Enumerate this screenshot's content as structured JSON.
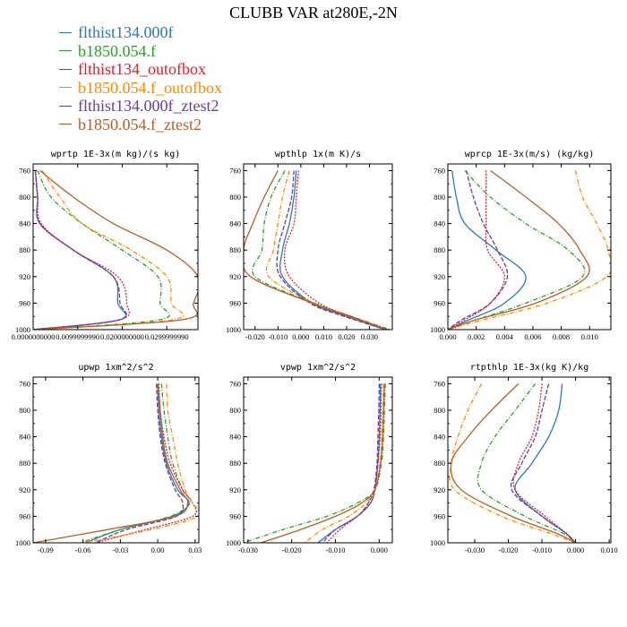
{
  "title": "CLUBB VAR at280E,-2N",
  "legend": [
    {
      "label": "flthist134.000f",
      "color": "#2a7ab8",
      "dash": ""
    },
    {
      "label": "b1850.054.f",
      "color": "#2ca02c",
      "dash": "5,2,1,2"
    },
    {
      "label": "flthist134_outofbox",
      "color": "#e0202a",
      "dash": "2,1.5"
    },
    {
      "label": "b1850.054.f_outofbox",
      "color": "#ff8c00",
      "dash": "5,2,1,2"
    },
    {
      "label": "flthist134.000f_ztest2",
      "color": "#6a3d9a",
      "dash": "5,2"
    },
    {
      "label": "b1850.054.f_ztest2",
      "color": "#b5602a",
      "dash": ""
    }
  ],
  "chart_data": [
    {
      "type": "line",
      "title": "wprtp  1E-3x(m kg)/(s kg)",
      "xlim": [
        0.0,
        0.037
      ],
      "ylim": [
        1000,
        750
      ],
      "xticks": [
        "0.0000000000",
        "0.0099999990",
        "0.0200000000",
        "0.0299999990"
      ],
      "xtick_values": [
        0.0,
        0.01,
        0.02,
        0.03
      ],
      "yticks": [
        760,
        800,
        840,
        880,
        920,
        960,
        1000
      ],
      "y": [
        760,
        800,
        840,
        880,
        920,
        960,
        985,
        1000
      ],
      "series": [
        {
          "name": "flthist134.000f",
          "values": [
            0.0005,
            0.001,
            0.0015,
            0.009,
            0.018,
            0.019,
            0.0195,
            0.0
          ]
        },
        {
          "name": "b1850.054.f",
          "values": [
            0.001,
            0.004,
            0.011,
            0.02,
            0.028,
            0.0285,
            0.0285,
            0.0
          ]
        },
        {
          "name": "flthist134_outofbox",
          "values": [
            0.0005,
            0.001,
            0.0018,
            0.009,
            0.019,
            0.021,
            0.0195,
            0.0
          ]
        },
        {
          "name": "b1850.054.f_outofbox",
          "values": [
            0.002,
            0.006,
            0.011,
            0.022,
            0.03,
            0.031,
            0.0315,
            0.0
          ]
        },
        {
          "name": "flthist134.000f_ztest2",
          "values": [
            0.0005,
            0.001,
            0.0015,
            0.009,
            0.018,
            0.0195,
            0.0195,
            0.0
          ]
        },
        {
          "name": "b1850.054.f_ztest2",
          "values": [
            0.0015,
            0.009,
            0.018,
            0.03,
            0.037,
            0.036,
            0.0335,
            0.0
          ]
        }
      ]
    },
    {
      "type": "line",
      "title": "wpthlp  1x(m K)/s",
      "xlim": [
        -0.025,
        0.04
      ],
      "ylim": [
        1000,
        750
      ],
      "xticks": [
        "-0.020",
        "-0.010",
        "0.000",
        "0.010",
        "0.020",
        "0.030"
      ],
      "xtick_values": [
        -0.02,
        -0.01,
        0.0,
        0.01,
        0.02,
        0.03
      ],
      "yticks": [
        760,
        800,
        840,
        880,
        920,
        960,
        1000
      ],
      "y": [
        760,
        800,
        840,
        880,
        920,
        960,
        980,
        1000
      ],
      "series": [
        {
          "name": "flthist134.000f",
          "values": [
            -0.002,
            -0.003,
            -0.005,
            -0.008,
            -0.008,
            0.005,
            0.02,
            0.037
          ]
        },
        {
          "name": "b1850.054.f",
          "values": [
            -0.007,
            -0.013,
            -0.016,
            -0.017,
            -0.02,
            0.006,
            0.022,
            0.039
          ]
        },
        {
          "name": "flthist134_outofbox",
          "values": [
            -0.001,
            -0.002,
            -0.003,
            -0.007,
            -0.005,
            0.008,
            0.022,
            0.038
          ]
        },
        {
          "name": "b1850.054.f_outofbox",
          "values": [
            -0.005,
            -0.008,
            -0.01,
            -0.012,
            -0.014,
            0.006,
            0.021,
            0.038
          ]
        },
        {
          "name": "flthist134.000f_ztest2",
          "values": [
            -0.003,
            -0.004,
            -0.007,
            -0.01,
            -0.009,
            0.004,
            0.019,
            0.037
          ]
        },
        {
          "name": "b1850.054.f_ztest2",
          "values": [
            -0.01,
            -0.016,
            -0.021,
            -0.025,
            -0.022,
            0.005,
            0.021,
            0.038
          ]
        }
      ]
    },
    {
      "type": "line",
      "title": "wprcp  1E-3x(m/s) (kg/kg)",
      "xlim": [
        0.0,
        0.0115
      ],
      "ylim": [
        1000,
        750
      ],
      "xticks": [
        "0.000",
        "0.002",
        "0.004",
        "0.006",
        "0.008",
        "0.010"
      ],
      "xtick_values": [
        0.0,
        0.002,
        0.004,
        0.006,
        0.008,
        0.01
      ],
      "yticks": [
        760,
        800,
        840,
        880,
        920,
        960,
        1000
      ],
      "y": [
        760,
        800,
        840,
        880,
        920,
        960,
        985,
        1000
      ],
      "series": [
        {
          "name": "flthist134.000f",
          "values": [
            0.0003,
            0.0006,
            0.0012,
            0.0034,
            0.0055,
            0.004,
            0.0015,
            0.0
          ]
        },
        {
          "name": "b1850.054.f",
          "values": [
            0.0012,
            0.003,
            0.0055,
            0.0085,
            0.0095,
            0.0055,
            0.002,
            0.0
          ]
        },
        {
          "name": "flthist134_outofbox",
          "values": [
            0.0027,
            0.0027,
            0.0027,
            0.0028,
            0.004,
            0.003,
            0.0012,
            0.0
          ]
        },
        {
          "name": "b1850.054.f_outofbox",
          "values": [
            0.009,
            0.0095,
            0.0105,
            0.0113,
            0.0112,
            0.007,
            0.0025,
            0.0
          ]
        },
        {
          "name": "flthist134.000f_ztest2",
          "values": [
            0.0013,
            0.0018,
            0.0025,
            0.0035,
            0.0042,
            0.003,
            0.001,
            0.0
          ]
        },
        {
          "name": "b1850.054.f_ztest2",
          "values": [
            0.003,
            0.0055,
            0.0078,
            0.0093,
            0.0098,
            0.0062,
            0.002,
            0.0
          ]
        }
      ]
    },
    {
      "type": "line",
      "title": "upwp  1xm^2/s^2",
      "xlim": [
        -0.1,
        0.033
      ],
      "ylim": [
        1000,
        750
      ],
      "xticks": [
        "-0.09",
        "-0.06",
        "-0.03",
        "0.00",
        "0.03"
      ],
      "xtick_values": [
        -0.09,
        -0.06,
        -0.03,
        0.0,
        0.03
      ],
      "yticks": [
        760,
        800,
        840,
        880,
        920,
        960,
        1000
      ],
      "y": [
        760,
        800,
        840,
        880,
        920,
        940,
        960,
        980,
        1000
      ],
      "series": [
        {
          "name": "flthist134.000f",
          "values": [
            0.0,
            0.001,
            0.003,
            0.007,
            0.016,
            0.025,
            0.012,
            -0.03,
            -0.058
          ]
        },
        {
          "name": "b1850.054.f",
          "values": [
            0.003,
            0.005,
            0.008,
            0.012,
            0.02,
            0.026,
            0.01,
            -0.03,
            -0.062
          ]
        },
        {
          "name": "flthist134_outofbox",
          "values": [
            0.001,
            0.002,
            0.005,
            0.01,
            0.02,
            0.028,
            0.028,
            -0.01,
            -0.05
          ]
        },
        {
          "name": "b1850.054.f_outofbox",
          "values": [
            0.007,
            0.008,
            0.012,
            0.016,
            0.022,
            0.028,
            0.032,
            -0.005,
            -0.06
          ]
        },
        {
          "name": "flthist134.000f_ztest2",
          "values": [
            -0.001,
            0.0,
            0.002,
            0.006,
            0.014,
            0.02,
            0.015,
            -0.025,
            -0.05
          ]
        },
        {
          "name": "b1850.054.f_ztest2",
          "values": [
            0.0,
            0.002,
            0.004,
            0.008,
            0.018,
            0.024,
            0.014,
            -0.04,
            -0.1
          ]
        }
      ]
    },
    {
      "type": "line",
      "title": "vpwp  1xm^2/s^2",
      "xlim": [
        -0.031,
        0.003
      ],
      "ylim": [
        1000,
        750
      ],
      "xticks": [
        "-0.030",
        "-0.020",
        "-0.010",
        "0.000"
      ],
      "xtick_values": [
        -0.03,
        -0.02,
        -0.01,
        0.0
      ],
      "yticks": [
        760,
        800,
        840,
        880,
        920,
        960,
        1000
      ],
      "y": [
        760,
        800,
        840,
        880,
        920,
        940,
        960,
        980,
        1000
      ],
      "series": [
        {
          "name": "flthist134.000f",
          "values": [
            0.0003,
            0.0002,
            0.0,
            -0.0003,
            -0.001,
            -0.002,
            -0.005,
            -0.01,
            -0.014
          ]
        },
        {
          "name": "b1850.054.f",
          "values": [
            0.0014,
            0.0012,
            0.001,
            0.0005,
            -0.001,
            -0.005,
            -0.012,
            -0.022,
            -0.031
          ]
        },
        {
          "name": "flthist134_outofbox",
          "values": [
            0.0005,
            0.0004,
            0.0002,
            -0.0003,
            -0.001,
            -0.002,
            -0.005,
            -0.009,
            -0.012
          ]
        },
        {
          "name": "b1850.054.f_outofbox",
          "values": [
            0.001,
            0.0008,
            0.0006,
            0.0002,
            -0.001,
            -0.003,
            -0.007,
            -0.013,
            -0.017
          ]
        },
        {
          "name": "flthist134.000f_ztest2",
          "values": [
            0.0,
            -0.0001,
            -0.0003,
            -0.0005,
            -0.0012,
            -0.0025,
            -0.005,
            -0.01,
            -0.013
          ]
        },
        {
          "name": "b1850.054.f_ztest2",
          "values": [
            0.0012,
            0.001,
            0.0008,
            0.0003,
            -0.001,
            -0.004,
            -0.01,
            -0.018,
            -0.027
          ]
        }
      ]
    },
    {
      "type": "line",
      "title": "rtpthlp  1E-3x(kg K)/kg",
      "xlim": [
        -0.038,
        0.0105
      ],
      "ylim": [
        1000,
        750
      ],
      "xticks": [
        "-0.030",
        "-0.020",
        "-0.010",
        "0.000",
        "0.010"
      ],
      "xtick_values": [
        -0.03,
        -0.02,
        -0.01,
        0.0,
        0.01
      ],
      "yticks": [
        760,
        800,
        840,
        880,
        920,
        960,
        1000
      ],
      "y": [
        760,
        800,
        840,
        880,
        920,
        960,
        985,
        1000
      ],
      "series": [
        {
          "name": "flthist134.000f",
          "values": [
            -0.004,
            -0.005,
            -0.008,
            -0.013,
            -0.018,
            -0.01,
            -0.003,
            0.0
          ]
        },
        {
          "name": "b1850.054.f",
          "values": [
            -0.012,
            -0.018,
            -0.024,
            -0.028,
            -0.028,
            -0.015,
            -0.004,
            0.0
          ]
        },
        {
          "name": "flthist134_outofbox",
          "values": [
            -0.01,
            -0.011,
            -0.013,
            -0.017,
            -0.018,
            -0.009,
            -0.003,
            0.0
          ]
        },
        {
          "name": "b1850.054.f_outofbox",
          "values": [
            -0.028,
            -0.032,
            -0.035,
            -0.037,
            -0.036,
            -0.022,
            -0.008,
            0.0
          ]
        },
        {
          "name": "flthist134.000f_ztest2",
          "values": [
            -0.008,
            -0.01,
            -0.012,
            -0.016,
            -0.019,
            -0.01,
            -0.003,
            0.0
          ]
        },
        {
          "name": "b1850.054.f_ztest2",
          "values": [
            -0.017,
            -0.025,
            -0.032,
            -0.037,
            -0.034,
            -0.019,
            -0.006,
            0.0
          ]
        }
      ]
    }
  ]
}
